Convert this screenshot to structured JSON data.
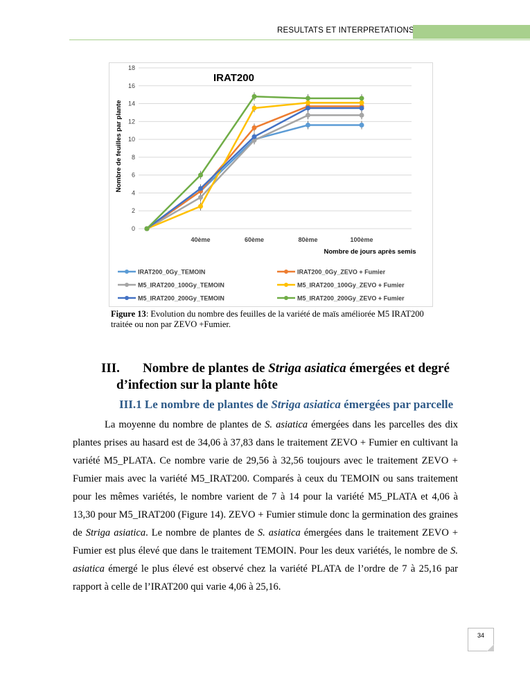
{
  "header": {
    "title": "RESULTATS ET INTERPRETATIONS",
    "accent_color": "#a8d08d"
  },
  "chart_data": {
    "type": "line",
    "title": "IRAT200",
    "ylabel": "Nombre de feuilles par plante",
    "xlabel": "Nombre de jours après semis",
    "categories": [
      "",
      "40ème",
      "60ème",
      "80ème",
      "100ème"
    ],
    "ylim": [
      0,
      18
    ],
    "yticks": [
      0,
      2,
      4,
      6,
      8,
      10,
      12,
      14,
      16,
      18
    ],
    "grid": true,
    "legend_position": "bottom",
    "error_bars": true,
    "series": [
      {
        "name": "IRAT200_0Gy_TEMOIN",
        "color": "#5b9bd5",
        "values": [
          0,
          4.2,
          10.0,
          11.6,
          11.6
        ]
      },
      {
        "name": "IRAT200_0Gy_ZEVO + Fumier",
        "color": "#ed7d31",
        "values": [
          0,
          4.2,
          11.3,
          13.7,
          13.7
        ]
      },
      {
        "name": "M5_IRAT200_100Gy_TEMOIN",
        "color": "#a5a5a5",
        "values": [
          0,
          3.5,
          9.9,
          12.7,
          12.7
        ]
      },
      {
        "name": "M5_IRAT200_100Gy_ZEVO + Fumier",
        "color": "#ffc000",
        "values": [
          0,
          2.5,
          13.5,
          14.1,
          14.1
        ]
      },
      {
        "name": "M5_IRAT200_200Gy_TEMOIN",
        "color": "#4472c4",
        "values": [
          0,
          4.5,
          10.3,
          13.5,
          13.5
        ]
      },
      {
        "name": "M5_IRAT200_200Gy_ZEVO + Fumier",
        "color": "#70ad47",
        "values": [
          0,
          6.0,
          14.8,
          14.6,
          14.6
        ]
      }
    ]
  },
  "caption": {
    "label": "Figure 13",
    "text": ": Evolution du nombre des feuilles de la variété de maïs améliorée M5 IRAT200 traitée ou non par ZEVO +Fumier."
  },
  "section": {
    "num": "III.",
    "title_a": "Nombre de plantes de ",
    "title_i": "Striga asiatica",
    "title_b": " émergées et degré",
    "title_c": "d’infection sur la plante hôte"
  },
  "subsection": {
    "num": "III.1",
    "a": "Le nombre de plantes de ",
    "i": "Striga asiatica",
    "b": " émergées par parcelle"
  },
  "paragraph": [
    "La moyenne du nombre de plantes de ",
    "S. asiatica",
    " émergées dans les parcelles des dix plantes prises au hasard est de 34,06 à 37,83 dans le traitement ZEVO + Fumier en cultivant la variété M5_PLATA. Ce nombre varie de 29,56 à 32,56 toujours avec le traitement ZEVO + Fumier mais avec la variété M5_IRAT200. Comparés à ceux du TEMOIN ou sans traitement pour les mêmes variétés, le nombre varient de 7 à 14 pour la variété M5_PLATA et 4,06 à 13,30 pour M5_IRAT200 (Figure 14). ZEVO + Fumier stimule donc la germination des graines de ",
    "Striga asiatica",
    ". Le nombre de plantes de ",
    "S. asiatica",
    " émergées dans le traitement ZEVO + Fumier est plus élevé que dans le traitement TEMOIN. Pour les deux variétés, le nombre de ",
    "S. asiatica",
    " émergé le plus élevé est observé chez la variété PLATA de l’ordre de 7 à 25,16 par rapport à celle de l’IRAT200 qui varie 4,06 à 25,16."
  ],
  "page_number": "34"
}
